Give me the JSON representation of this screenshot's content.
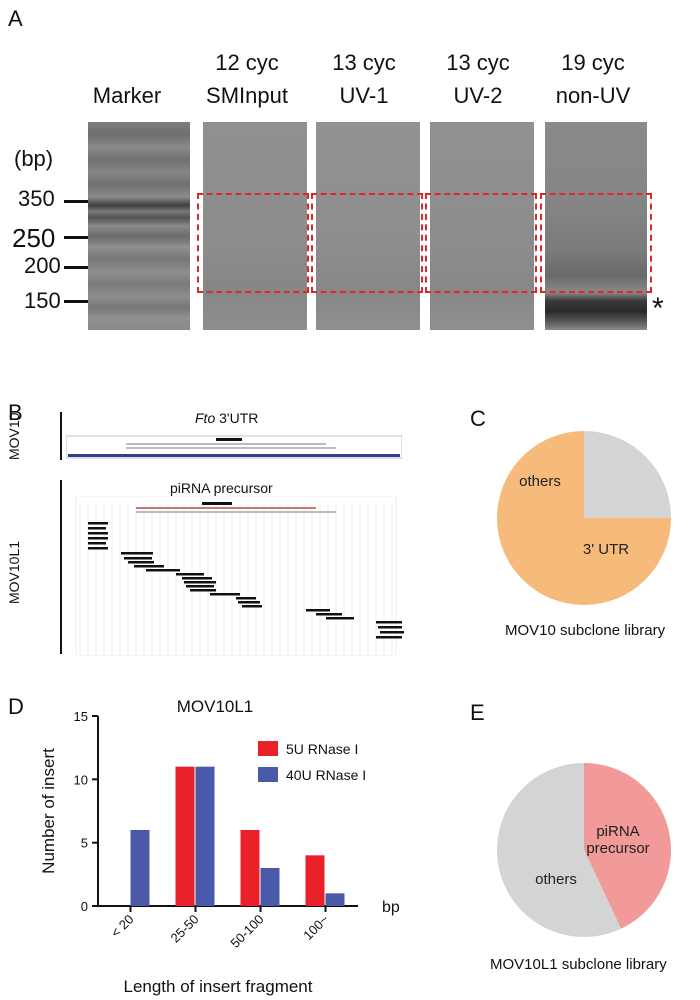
{
  "panels": {
    "a": "A",
    "b": "B",
    "c": "C",
    "d": "D",
    "e": "E"
  },
  "panelA": {
    "lanes": [
      {
        "line1": "",
        "line2": "Marker"
      },
      {
        "line1": "12 cyc",
        "line2": "SMInput"
      },
      {
        "line1": "13 cyc",
        "line2": "UV-1"
      },
      {
        "line1": "13 cyc",
        "line2": "UV-2"
      },
      {
        "line1": "19 cyc",
        "line2": "non-UV"
      }
    ],
    "unit": "(bp)",
    "bp_marks": [
      "350",
      "250",
      "200",
      "150"
    ],
    "asterisk": "*"
  },
  "panelB": {
    "mov10_label": "MOV10",
    "mov10_title_italic": "Fto",
    "mov10_title_rest": " 3'UTR",
    "mov10l1_label": "MOV10L1",
    "mov10l1_title": "piRNA precursor"
  },
  "panelC": {
    "caption": "MOV10 subclone library",
    "colors": {
      "utr": "#f6bb7b",
      "others": "#d4d4d4"
    },
    "slices": [
      {
        "label": "3' UTR",
        "percent": 75
      },
      {
        "label": "others",
        "percent": 25
      }
    ]
  },
  "panelE": {
    "caption": "MOV10L1 subclone library",
    "colors": {
      "pirna": "#f29a9a",
      "others": "#d4d4d4"
    },
    "slices": [
      {
        "label": "piRNA\nprecursor",
        "percent": 43
      },
      {
        "label": "others",
        "percent": 57
      }
    ]
  },
  "chart_data": {
    "type": "bar",
    "title": "MOV10L1",
    "xlabel": "Length of  insert fragment",
    "ylabel": "Number of insert",
    "xunit": "bp",
    "categories": [
      "< 20",
      "25-50",
      "50-100",
      "100~"
    ],
    "series": [
      {
        "name": "5U    RNase I",
        "color": "#e8212b",
        "values": [
          0,
          11,
          6,
          4
        ]
      },
      {
        "name": "40U RNase I",
        "color": "#4b5aa8",
        "values": [
          6,
          11,
          3,
          1
        ]
      }
    ],
    "yticks": [
      "0",
      "5",
      "10",
      "15"
    ],
    "ylim": [
      0,
      15
    ]
  }
}
